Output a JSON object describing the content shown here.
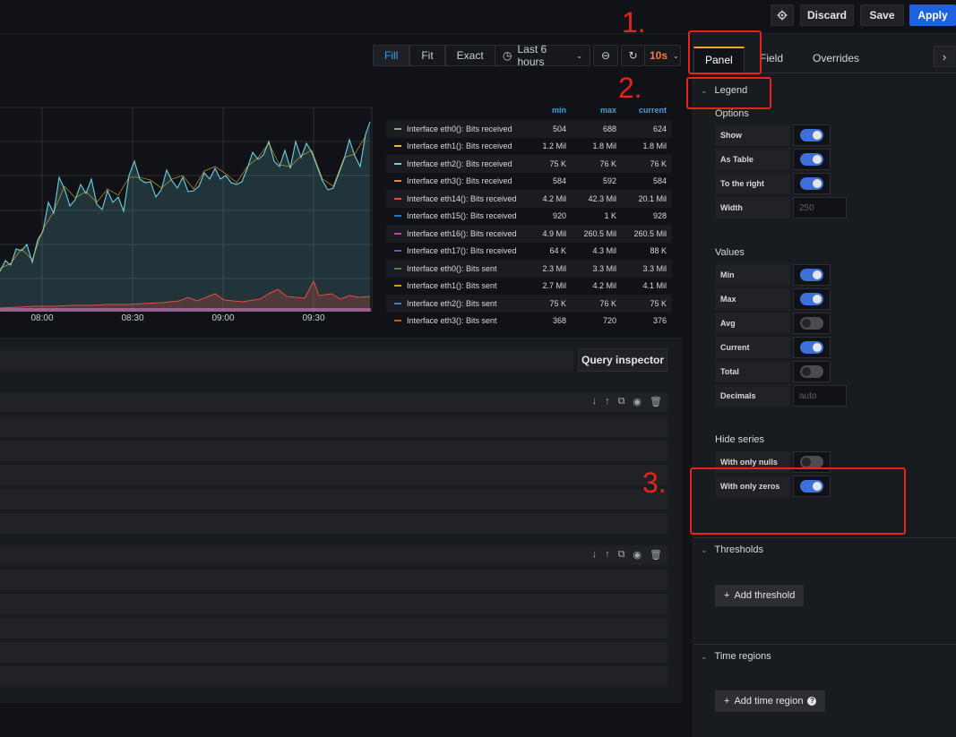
{
  "toolbar": {
    "discard_label": "Discard",
    "save_label": "Save",
    "apply_label": "Apply"
  },
  "panel_toolbar": {
    "modes": [
      "Fill",
      "Fit",
      "Exact"
    ],
    "active_mode": "Fill",
    "time_range": "Last 6 hours",
    "refresh_interval": "10s"
  },
  "chart_data": {
    "type": "area",
    "x_ticks": [
      "08:00",
      "08:30",
      "09:00",
      "09:30"
    ]
  },
  "legend": {
    "columns": [
      "min",
      "max",
      "current"
    ],
    "rows": [
      {
        "name": "Interface eth0(): Bits received",
        "min": "504",
        "max": "688",
        "current": "624",
        "color": "#7eb26d"
      },
      {
        "name": "Interface eth1(): Bits received",
        "min": "1.2 Mil",
        "max": "1.8 Mil",
        "current": "1.8 Mil",
        "color": "#eab839"
      },
      {
        "name": "Interface eth2(): Bits received",
        "min": "75 K",
        "max": "76 K",
        "current": "76 K",
        "color": "#6ed0e0"
      },
      {
        "name": "Interface eth3(): Bits received",
        "min": "584",
        "max": "592",
        "current": "584",
        "color": "#ef843c"
      },
      {
        "name": "Interface eth14(): Bits received",
        "min": "4.2 Mil",
        "max": "42.3 Mil",
        "current": "20.1 Mil",
        "color": "#e24d42"
      },
      {
        "name": "Interface eth15(): Bits received",
        "min": "920",
        "max": "1 K",
        "current": "928",
        "color": "#1f78c1"
      },
      {
        "name": "Interface eth16(): Bits received",
        "min": "4.9 Mil",
        "max": "260.5 Mil",
        "current": "260.5 Mil",
        "color": "#ba43a9"
      },
      {
        "name": "Interface eth17(): Bits received",
        "min": "64 K",
        "max": "4.3 Mil",
        "current": "88 K",
        "color": "#705da0"
      },
      {
        "name": "Interface eth0(): Bits sent",
        "min": "2.3 Mil",
        "max": "3.3 Mil",
        "current": "3.3 Mil",
        "color": "#508642"
      },
      {
        "name": "Interface eth1(): Bits sent",
        "min": "2.7 Mil",
        "max": "4.2 Mil",
        "current": "4.1 Mil",
        "color": "#cca300"
      },
      {
        "name": "Interface eth2(): Bits sent",
        "min": "75 K",
        "max": "76 K",
        "current": "75 K",
        "color": "#447ebc"
      },
      {
        "name": "Interface eth3(): Bits sent",
        "min": "368",
        "max": "720",
        "current": "376",
        "color": "#c15c17"
      }
    ]
  },
  "queries": {
    "inspector_label": "Query inspector"
  },
  "options": {
    "tabs": [
      "Panel",
      "Field",
      "Overrides"
    ],
    "active_tab": "Panel",
    "legend_title": "Legend",
    "options_title": "Options",
    "show_label": "Show",
    "as_table_label": "As Table",
    "to_right_label": "To the right",
    "width_label": "Width",
    "width_placeholder": "250",
    "values_title": "Values",
    "min_label": "Min",
    "max_label": "Max",
    "avg_label": "Avg",
    "current_label": "Current",
    "total_label": "Total",
    "decimals_label": "Decimals",
    "decimals_placeholder": "auto",
    "hide_series_title": "Hide series",
    "only_nulls_label": "With only nulls",
    "only_zeros_label": "With only zeros",
    "thresholds_title": "Thresholds",
    "add_threshold_label": "Add threshold",
    "time_regions_title": "Time regions",
    "add_time_region_label": "Add time region"
  },
  "annotations": [
    "1.",
    "2.",
    "3."
  ]
}
